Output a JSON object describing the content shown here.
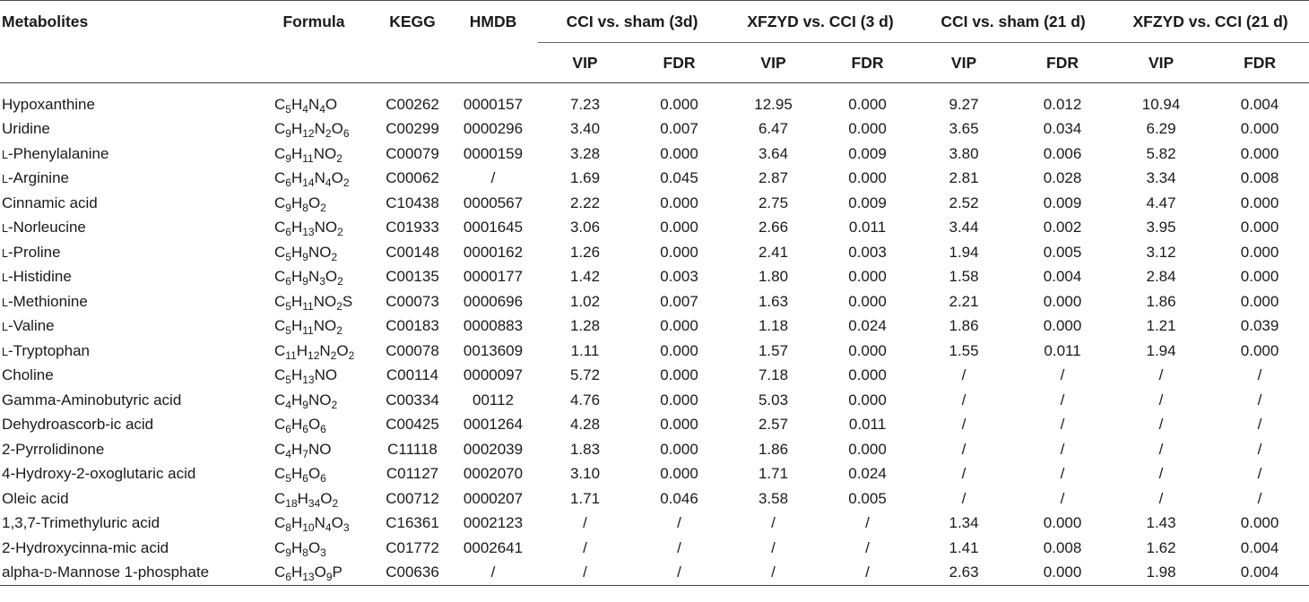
{
  "table": {
    "headers": {
      "metabolites": "Metabolites",
      "formula": "Formula",
      "kegg": "KEGG",
      "hmdb": "HMDB",
      "groups": [
        {
          "label": "CCI vs. sham (3d)",
          "vip": "VIP",
          "fdr": "FDR"
        },
        {
          "label": "XFZYD vs. CCI (3 d)",
          "vip": "VIP",
          "fdr": "FDR"
        },
        {
          "label": "CCI vs. sham (21 d)",
          "vip": "VIP",
          "fdr": "FDR"
        },
        {
          "label": "XFZYD vs. CCI (21 d)",
          "vip": "VIP",
          "fdr": "FDR"
        }
      ]
    },
    "rows": [
      {
        "prefix": "",
        "name": "Hypoxanthine",
        "formula": [
          [
            "C",
            ""
          ],
          [
            "5",
            "s"
          ],
          [
            "H",
            ""
          ],
          [
            "4",
            "s"
          ],
          [
            "N",
            ""
          ],
          [
            "4",
            "s"
          ],
          [
            "O",
            ""
          ]
        ],
        "kegg": "C00262",
        "hmdb": "0000157",
        "v": [
          "7.23",
          "0.000",
          "12.95",
          "0.000",
          "9.27",
          "0.012",
          "10.94",
          "0.004"
        ]
      },
      {
        "prefix": "",
        "name": "Uridine",
        "formula": [
          [
            "C",
            ""
          ],
          [
            "9",
            "s"
          ],
          [
            "H",
            ""
          ],
          [
            "12",
            "s"
          ],
          [
            "N",
            ""
          ],
          [
            "2",
            "s"
          ],
          [
            "O",
            ""
          ],
          [
            "6",
            "s"
          ]
        ],
        "kegg": "C00299",
        "hmdb": "0000296",
        "v": [
          "3.40",
          "0.007",
          "6.47",
          "0.000",
          "3.65",
          "0.034",
          "6.29",
          "0.000"
        ]
      },
      {
        "prefix": "L",
        "name": "-Phenylalanine",
        "formula": [
          [
            "C",
            ""
          ],
          [
            "9",
            "s"
          ],
          [
            "H",
            ""
          ],
          [
            "11",
            "s"
          ],
          [
            "NO",
            ""
          ],
          [
            "2",
            "s"
          ]
        ],
        "kegg": "C00079",
        "hmdb": "0000159",
        "v": [
          "3.28",
          "0.000",
          "3.64",
          "0.009",
          "3.80",
          "0.006",
          "5.82",
          "0.000"
        ]
      },
      {
        "prefix": "L",
        "name": "-Arginine",
        "formula": [
          [
            "C",
            ""
          ],
          [
            "6",
            "s"
          ],
          [
            "H",
            ""
          ],
          [
            "14",
            "s"
          ],
          [
            "N",
            ""
          ],
          [
            "4",
            "s"
          ],
          [
            "O",
            ""
          ],
          [
            "2",
            "s"
          ]
        ],
        "kegg": "C00062",
        "hmdb": "/",
        "v": [
          "1.69",
          "0.045",
          "2.87",
          "0.000",
          "2.81",
          "0.028",
          "3.34",
          "0.008"
        ]
      },
      {
        "prefix": "",
        "name": "Cinnamic acid",
        "formula": [
          [
            "C",
            ""
          ],
          [
            "9",
            "s"
          ],
          [
            "H",
            ""
          ],
          [
            "8",
            "s"
          ],
          [
            "O",
            ""
          ],
          [
            "2",
            "s"
          ]
        ],
        "kegg": "C10438",
        "hmdb": "0000567",
        "v": [
          "2.22",
          "0.000",
          "2.75",
          "0.009",
          "2.52",
          "0.009",
          "4.47",
          "0.000"
        ]
      },
      {
        "prefix": "L",
        "name": "-Norleucine",
        "formula": [
          [
            "C",
            ""
          ],
          [
            "6",
            "s"
          ],
          [
            "H",
            ""
          ],
          [
            "13",
            "s"
          ],
          [
            "NO",
            ""
          ],
          [
            "2",
            "s"
          ]
        ],
        "kegg": "C01933",
        "hmdb": "0001645",
        "v": [
          "3.06",
          "0.000",
          "2.66",
          "0.011",
          "3.44",
          "0.002",
          "3.95",
          "0.000"
        ]
      },
      {
        "prefix": "L",
        "name": "-Proline",
        "formula": [
          [
            "C",
            ""
          ],
          [
            "5",
            "s"
          ],
          [
            "H",
            ""
          ],
          [
            "9",
            "s"
          ],
          [
            "NO",
            ""
          ],
          [
            "2",
            "s"
          ]
        ],
        "kegg": "C00148",
        "hmdb": "0000162",
        "v": [
          "1.26",
          "0.000",
          "2.41",
          "0.003",
          "1.94",
          "0.005",
          "3.12",
          "0.000"
        ]
      },
      {
        "prefix": "L",
        "name": "-Histidine",
        "formula": [
          [
            "C",
            ""
          ],
          [
            "6",
            "s"
          ],
          [
            "H",
            ""
          ],
          [
            "9",
            "s"
          ],
          [
            "N",
            ""
          ],
          [
            "3",
            "s"
          ],
          [
            "O",
            ""
          ],
          [
            "2",
            "s"
          ]
        ],
        "kegg": "C00135",
        "hmdb": "0000177",
        "v": [
          "1.42",
          "0.003",
          "1.80",
          "0.000",
          "1.58",
          "0.004",
          "2.84",
          "0.000"
        ]
      },
      {
        "prefix": "L",
        "name": "-Methionine",
        "formula": [
          [
            "C",
            ""
          ],
          [
            "5",
            "s"
          ],
          [
            "H",
            ""
          ],
          [
            "11",
            "s"
          ],
          [
            "NO",
            ""
          ],
          [
            "2",
            "s"
          ],
          [
            "S",
            ""
          ]
        ],
        "kegg": "C00073",
        "hmdb": "0000696",
        "v": [
          "1.02",
          "0.007",
          "1.63",
          "0.000",
          "2.21",
          "0.000",
          "1.86",
          "0.000"
        ]
      },
      {
        "prefix": "L",
        "name": "-Valine",
        "formula": [
          [
            "C",
            ""
          ],
          [
            "5",
            "s"
          ],
          [
            "H",
            ""
          ],
          [
            "11",
            "s"
          ],
          [
            "NO",
            ""
          ],
          [
            "2",
            "s"
          ]
        ],
        "kegg": "C00183",
        "hmdb": "0000883",
        "v": [
          "1.28",
          "0.000",
          "1.18",
          "0.024",
          "1.86",
          "0.000",
          "1.21",
          "0.039"
        ]
      },
      {
        "prefix": "L",
        "name": "-Tryptophan",
        "formula": [
          [
            "C",
            ""
          ],
          [
            "11",
            "s"
          ],
          [
            "H",
            ""
          ],
          [
            "12",
            "s"
          ],
          [
            "N",
            ""
          ],
          [
            "2",
            "s"
          ],
          [
            "O",
            ""
          ],
          [
            "2",
            "s"
          ]
        ],
        "kegg": "C00078",
        "hmdb": "0013609",
        "v": [
          "1.11",
          "0.000",
          "1.57",
          "0.000",
          "1.55",
          "0.011",
          "1.94",
          "0.000"
        ]
      },
      {
        "prefix": "",
        "name": "Choline",
        "formula": [
          [
            "C",
            ""
          ],
          [
            "5",
            "s"
          ],
          [
            "H",
            ""
          ],
          [
            "13",
            "s"
          ],
          [
            "NO",
            ""
          ]
        ],
        "kegg": "C00114",
        "hmdb": "0000097",
        "v": [
          "5.72",
          "0.000",
          "7.18",
          "0.000",
          "/",
          "/",
          "/",
          "/"
        ]
      },
      {
        "prefix": "",
        "name": "Gamma-Aminobutyric acid",
        "formula": [
          [
            "C",
            ""
          ],
          [
            "4",
            "s"
          ],
          [
            "H",
            ""
          ],
          [
            "9",
            "s"
          ],
          [
            "NO",
            ""
          ],
          [
            "2",
            "s"
          ]
        ],
        "kegg": "C00334",
        "hmdb": "00112",
        "v": [
          "4.76",
          "0.000",
          "5.03",
          "0.000",
          "/",
          "/",
          "/",
          "/"
        ]
      },
      {
        "prefix": "",
        "name": "Dehydroascorb-ic acid",
        "formula": [
          [
            "C",
            ""
          ],
          [
            "6",
            "s"
          ],
          [
            "H",
            ""
          ],
          [
            "6",
            "s"
          ],
          [
            "O",
            ""
          ],
          [
            "6",
            "s"
          ]
        ],
        "kegg": "C00425",
        "hmdb": "0001264",
        "v": [
          "4.28",
          "0.000",
          "2.57",
          "0.011",
          "/",
          "/",
          "/",
          "/"
        ]
      },
      {
        "prefix": "",
        "name": "2-Pyrrolidinone",
        "formula": [
          [
            "C",
            ""
          ],
          [
            "4",
            "s"
          ],
          [
            "H",
            ""
          ],
          [
            "7",
            "s"
          ],
          [
            "NO",
            ""
          ]
        ],
        "kegg": "C11118",
        "hmdb": "0002039",
        "v": [
          "1.83",
          "0.000",
          "1.86",
          "0.000",
          "/",
          "/",
          "/",
          "/"
        ]
      },
      {
        "prefix": "",
        "name": "4-Hydroxy-2-oxoglutaric acid",
        "formula": [
          [
            "C",
            ""
          ],
          [
            "5",
            "s"
          ],
          [
            "H",
            ""
          ],
          [
            "6",
            "s"
          ],
          [
            "O",
            ""
          ],
          [
            "6",
            "s"
          ]
        ],
        "kegg": "C01127",
        "hmdb": "0002070",
        "v": [
          "3.10",
          "0.000",
          "1.71",
          "0.024",
          "/",
          "/",
          "/",
          "/"
        ]
      },
      {
        "prefix": "",
        "name": "Oleic acid",
        "formula": [
          [
            "C",
            ""
          ],
          [
            "18",
            "s"
          ],
          [
            "H",
            ""
          ],
          [
            "34",
            "s"
          ],
          [
            "O",
            ""
          ],
          [
            "2",
            "s"
          ]
        ],
        "kegg": "C00712",
        "hmdb": "0000207",
        "v": [
          "1.71",
          "0.046",
          "3.58",
          "0.005",
          "/",
          "/",
          "/",
          "/"
        ]
      },
      {
        "prefix": "",
        "name": "1,3,7-Trimethyluric acid",
        "formula": [
          [
            "C",
            ""
          ],
          [
            "8",
            "s"
          ],
          [
            "H",
            ""
          ],
          [
            "10",
            "s"
          ],
          [
            "N",
            ""
          ],
          [
            "4",
            "s"
          ],
          [
            "O",
            ""
          ],
          [
            "3",
            "s"
          ]
        ],
        "kegg": "C16361",
        "hmdb": "0002123",
        "v": [
          "/",
          "/",
          "/",
          "/",
          "1.34",
          "0.000",
          "1.43",
          "0.000"
        ]
      },
      {
        "prefix": "",
        "name": "2-Hydroxycinna-mic acid",
        "formula": [
          [
            "C",
            ""
          ],
          [
            "9",
            "s"
          ],
          [
            "H",
            ""
          ],
          [
            "8",
            "s"
          ],
          [
            "O",
            ""
          ],
          [
            "3",
            "s"
          ]
        ],
        "kegg": "C01772",
        "hmdb": "0002641",
        "v": [
          "/",
          "/",
          "/",
          "/",
          "1.41",
          "0.008",
          "1.62",
          "0.004"
        ]
      },
      {
        "prefix": "",
        "name": "alpha-",
        "name2": "-Mannose 1-phosphate",
        "prefix2": "D",
        "formula": [
          [
            "C",
            ""
          ],
          [
            "6",
            "s"
          ],
          [
            "H",
            ""
          ],
          [
            "13",
            "s"
          ],
          [
            "O",
            ""
          ],
          [
            "9",
            "s"
          ],
          [
            "P",
            ""
          ]
        ],
        "kegg": "C00636",
        "hmdb": "/",
        "v": [
          "/",
          "/",
          "/",
          "/",
          "2.63",
          "0.000",
          "1.98",
          "0.004"
        ]
      }
    ]
  }
}
